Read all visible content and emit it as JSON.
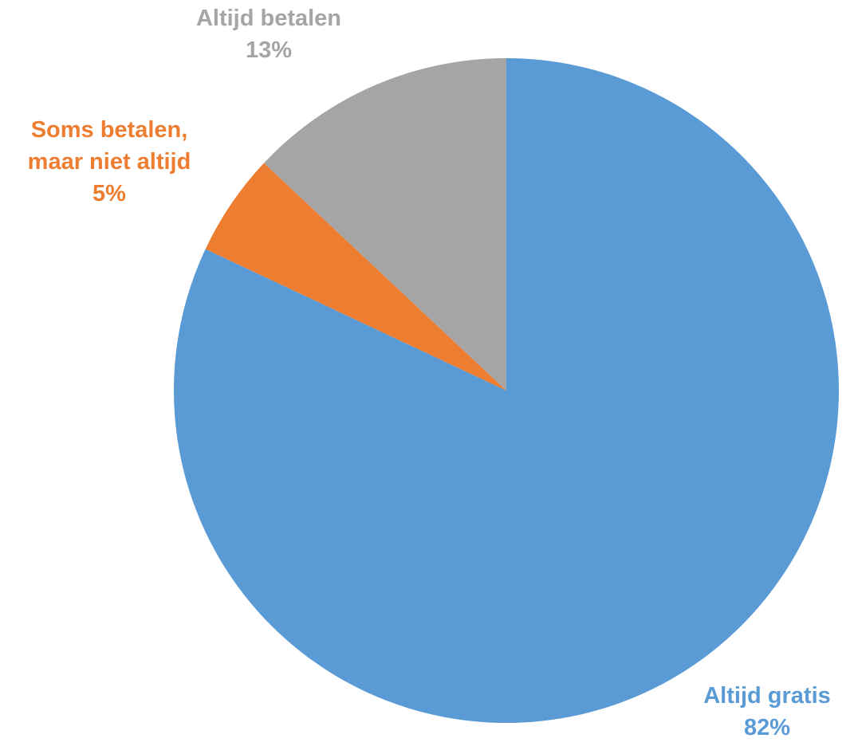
{
  "chart_data": {
    "type": "pie",
    "start_angle": "12 o'clock",
    "direction": "clockwise",
    "legend": "none",
    "slices": [
      {
        "name": "Altijd gratis",
        "value": 82,
        "percent_label": "82%",
        "label_lines": [
          "Altijd gratis"
        ],
        "color": "#5B9BD5",
        "label_position": "bottom-right"
      },
      {
        "name": "Soms betalen, maar niet altijd",
        "value": 5,
        "percent_label": "5%",
        "label_lines": [
          "Soms betalen,",
          "maar niet altijd"
        ],
        "color": "#ED7D31",
        "label_position": "upper-left"
      },
      {
        "name": "Altijd betalen",
        "value": 13,
        "percent_label": "13%",
        "label_lines": [
          "Altijd betalen"
        ],
        "color": "#A5A5A5",
        "label_position": "top"
      }
    ]
  }
}
